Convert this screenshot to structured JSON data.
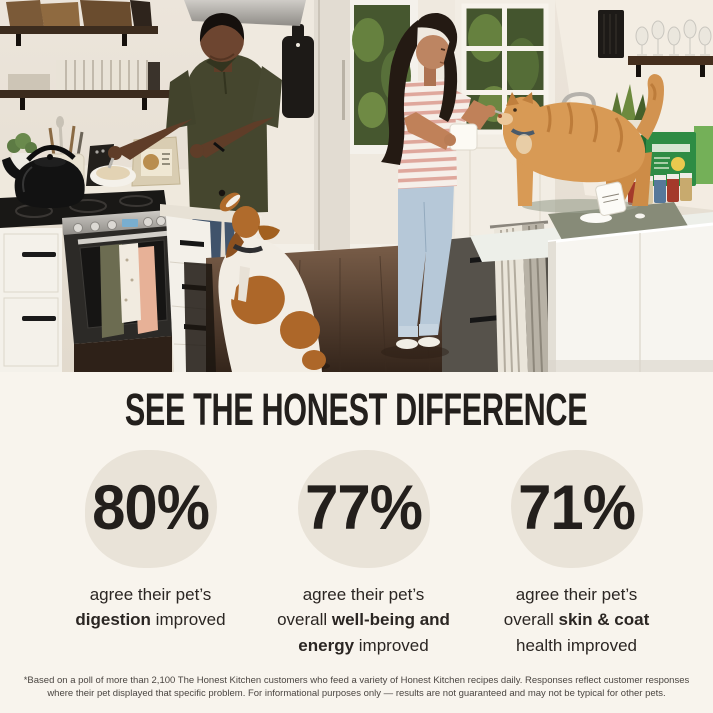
{
  "stats": {
    "heading": "SEE THE HONEST DIFFERENCE",
    "items": [
      {
        "percent": "80%",
        "lines": [
          [
            {
              "text": "agree their pet’s",
              "bold": false
            }
          ],
          [
            {
              "text": "digestion",
              "bold": true
            },
            {
              "text": " improved",
              "bold": false
            }
          ]
        ]
      },
      {
        "percent": "77%",
        "lines": [
          [
            {
              "text": "agree their pet’s",
              "bold": false
            }
          ],
          [
            {
              "text": "overall ",
              "bold": false
            },
            {
              "text": "well-being and",
              "bold": true
            }
          ],
          [
            {
              "text": "energy",
              "bold": true
            },
            {
              "text": " improved",
              "bold": false
            }
          ]
        ]
      },
      {
        "percent": "71%",
        "lines": [
          [
            {
              "text": "agree their pet’s",
              "bold": false
            }
          ],
          [
            {
              "text": "overall ",
              "bold": false
            },
            {
              "text": "skin & coat",
              "bold": true
            }
          ],
          [
            {
              "text": "health improved",
              "bold": false
            }
          ]
        ]
      }
    ]
  },
  "footnote": {
    "line1": "*Based on a poll of more than 2,100 The Honest Kitchen customers who feed a variety of Honest Kitchen recipes daily. Responses reflect customer responses",
    "line2": "where their pet displayed that specific problem. For informational purposes only — results are not guaranteed and may not be typical for other pets."
  },
  "colors": {
    "background": "#f8f4ed",
    "blob": "#e9e3d8",
    "heading_text": "#231f1c",
    "body_text": "#2b2623",
    "footnote_text": "#4a4541"
  }
}
